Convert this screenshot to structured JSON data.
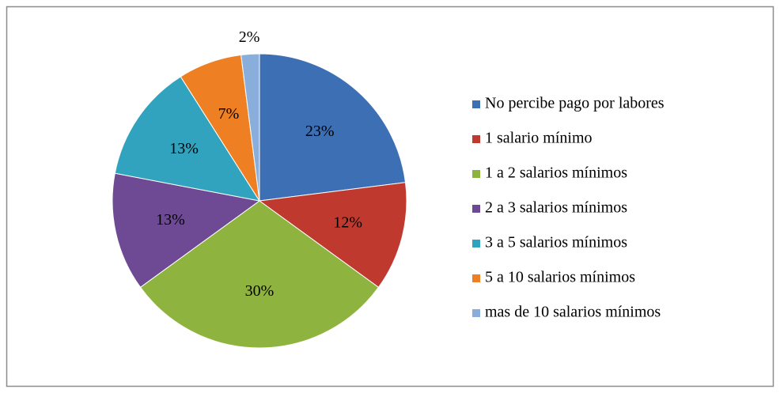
{
  "chart_data": {
    "type": "pie",
    "categories": [
      "No percibe pago por labores",
      "1 salario mínimo",
      "1 a 2 salarios mínimos",
      "2 a 3 salarios mínimos",
      "3 a 5 salarios mínimos",
      "5 a 10 salarios mínimos",
      "mas de 10 salarios mínimos"
    ],
    "values": [
      23,
      12,
      30,
      13,
      13,
      7,
      2
    ],
    "value_labels": [
      "23%",
      "12%",
      "30%",
      "13%",
      "13%",
      "7%",
      "2%"
    ],
    "colors": [
      "#3d6fb4",
      "#c0392f",
      "#8fb33f",
      "#6e4a94",
      "#31a3bf",
      "#ee7f22",
      "#8aaedc"
    ],
    "legend": "right"
  }
}
